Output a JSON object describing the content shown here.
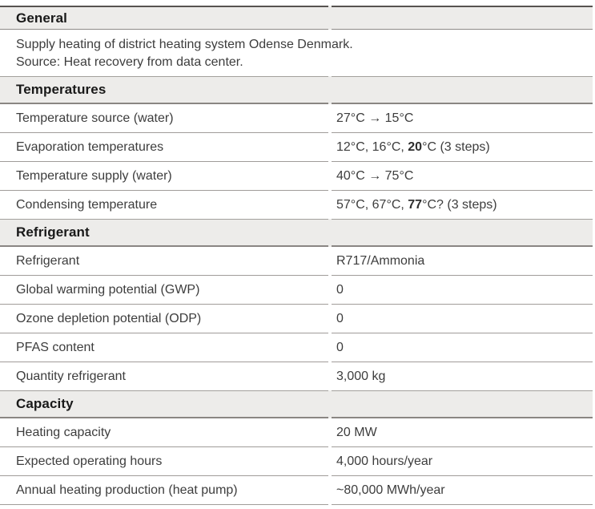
{
  "table": {
    "sections": [
      {
        "title": "General",
        "description_lines": [
          "Supply heating of district heating system Odense Denmark.",
          "Source: Heat recovery from data center."
        ],
        "rows": []
      },
      {
        "title": "Temperatures",
        "rows": [
          {
            "label": "Temperature source (water)",
            "value_pre": "27°C → 15°C"
          },
          {
            "label": "Evaporation temperatures",
            "value_pre": "12°C, 16°C, ",
            "value_bold": "20",
            "value_post": "°C (3 steps)"
          },
          {
            "label": "Temperature supply (water)",
            "value_pre": "40°C → 75°C"
          },
          {
            "label": "Condensing temperature",
            "value_pre": "57°C, 67°C, ",
            "value_bold": "77",
            "value_post": "°C? (3 steps)"
          }
        ]
      },
      {
        "title": "Refrigerant",
        "rows": [
          {
            "label": "Refrigerant",
            "value_pre": "R717/Ammonia"
          },
          {
            "label": "Global warming potential (GWP)",
            "value_pre": "0"
          },
          {
            "label": "Ozone depletion potential (ODP)",
            "value_pre": "0"
          },
          {
            "label": "PFAS content",
            "value_pre": "0"
          },
          {
            "label": "Quantity refrigerant",
            "value_pre": "3,000 kg"
          }
        ]
      },
      {
        "title": "Capacity",
        "rows": [
          {
            "label": "Heating capacity",
            "value_pre": "20 MW"
          },
          {
            "label": "Expected operating hours",
            "value_pre": "4,000 hours/year"
          },
          {
            "label": "Annual heating production (heat pump)",
            "value_pre": "~80,000 MWh/year"
          }
        ]
      }
    ]
  }
}
